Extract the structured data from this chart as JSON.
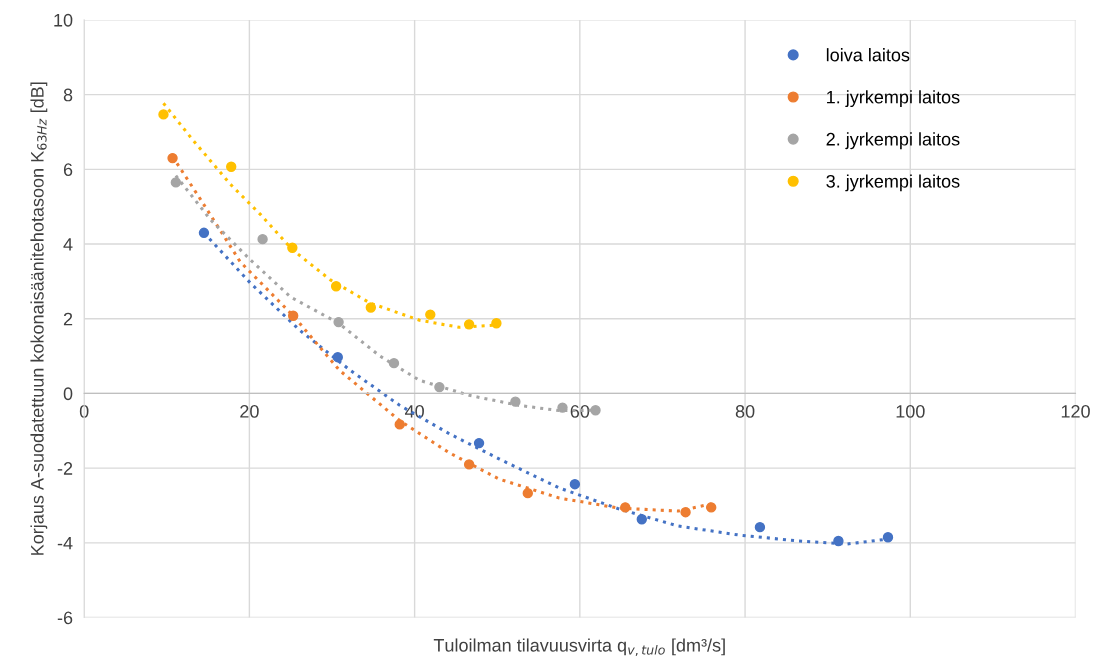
{
  "chart_data": {
    "type": "scatter",
    "xlabel": "Tuloilman tilavuusvirta q$_{v,tulo}$ [dm³/s]",
    "ylabel": "Korjaus A-suodatettuun kokonaisäänitehotasoon K$_{63Hz}$ [dB]",
    "xlim": [
      0,
      120
    ],
    "xticks": [
      0,
      20,
      40,
      60,
      80,
      100,
      120
    ],
    "ylim": [
      -6,
      10
    ],
    "yticks": [
      -6,
      -4,
      -2,
      0,
      2,
      4,
      6,
      8,
      10
    ],
    "grid": true,
    "legend": "top right",
    "series": [
      {
        "name": "loiva laitos",
        "marker": "circle",
        "color": "#4472c4",
        "x": [
          14.5,
          30.7,
          47.8,
          59.4,
          67.5,
          81.8,
          91.3,
          97.3
        ],
        "values": [
          4.3,
          0.97,
          -1.33,
          -2.43,
          -3.37,
          -3.58,
          -3.95,
          -3.85
        ]
      },
      {
        "name": "1. jyrkempi laitos",
        "marker": "circle",
        "color": "#ed7d31",
        "x": [
          10.7,
          25.3,
          38.2,
          46.6,
          53.7,
          65.5,
          72.8,
          75.9
        ],
        "values": [
          6.3,
          2.08,
          -0.83,
          -1.9,
          -2.67,
          -3.05,
          -3.18,
          -3.05
        ]
      },
      {
        "name": "2. jyrkempi laitos",
        "marker": "circle",
        "color": "#a5a5a5",
        "x": [
          11.1,
          21.6,
          30.8,
          37.5,
          43.0,
          52.2,
          57.9,
          61.9
        ],
        "values": [
          5.65,
          4.13,
          1.91,
          0.81,
          0.17,
          -0.22,
          -0.38,
          -0.45
        ]
      },
      {
        "name": "3. jyrkempi laitos",
        "marker": "circle",
        "color": "#ffc000",
        "x": [
          9.6,
          17.8,
          25.2,
          30.5,
          34.7,
          41.9,
          46.6,
          49.9
        ],
        "values": [
          7.47,
          6.07,
          3.9,
          2.87,
          2.3,
          2.11,
          1.85,
          1.88
        ]
      },
      {
        "type": "line",
        "line_style": "dotted",
        "color": "#4472c4",
        "x": [
          14.5,
          20.1,
          26.1,
          32.2,
          38.2,
          44.2,
          50.2,
          57.5,
          64.7,
          71.9,
          79.2,
          86.4,
          92.4,
          97.3
        ],
        "values": [
          4.3,
          2.96,
          1.69,
          0.62,
          -0.32,
          -1.08,
          -1.75,
          -2.53,
          -3.09,
          -3.55,
          -3.79,
          -3.95,
          -4.03,
          -3.9
        ]
      },
      {
        "type": "line",
        "line_style": "dotted",
        "color": "#ed7d31",
        "x": [
          10.7,
          14.1,
          18.9,
          25.3,
          30.9,
          38.2,
          44.2,
          50.2,
          57.5,
          64.7,
          71.9,
          75.9
        ],
        "values": [
          6.34,
          5.19,
          3.52,
          2.08,
          0.62,
          -0.73,
          -1.59,
          -2.29,
          -2.8,
          -3.07,
          -3.15,
          -2.96
        ]
      },
      {
        "type": "line",
        "line_style": "dotted",
        "color": "#a5a5a5",
        "x": [
          11.1,
          15.3,
          20.1,
          25.0,
          30.8,
          35.8,
          40.6,
          46.6,
          52.6,
          57.5,
          61.9
        ],
        "values": [
          5.83,
          4.65,
          3.58,
          2.58,
          1.88,
          1.0,
          0.35,
          -0.05,
          -0.32,
          -0.46,
          -0.45
        ]
      },
      {
        "type": "line",
        "line_style": "dotted",
        "color": "#ffc000",
        "x": [
          9.6,
          13.1,
          17.7,
          21.3,
          25.2,
          29.8,
          34.6,
          40.6,
          45.4,
          49.9
        ],
        "values": [
          7.77,
          6.8,
          5.6,
          4.8,
          3.85,
          3.04,
          2.42,
          1.96,
          1.77,
          1.83
        ]
      }
    ]
  }
}
